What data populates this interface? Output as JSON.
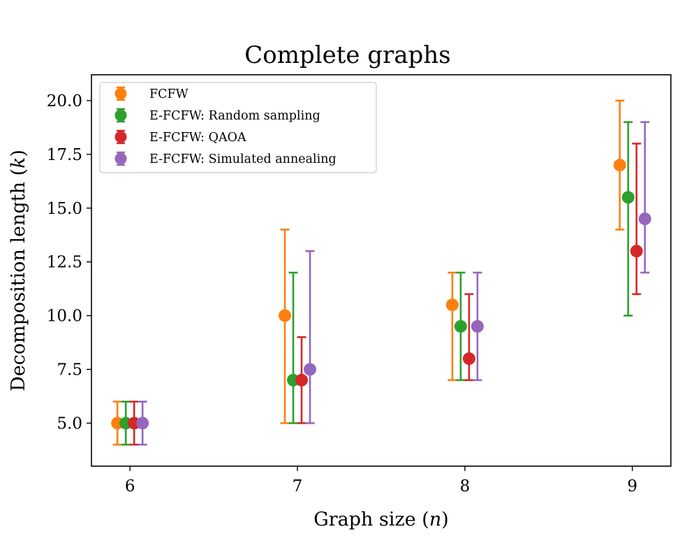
{
  "chart_data": {
    "type": "errorbar",
    "title": "Complete graphs",
    "xlabel": "Graph size (n)",
    "ylabel": "Decomposition length (k)",
    "x": [
      6,
      7,
      8,
      9
    ],
    "xlim": [
      5.77,
      9.23
    ],
    "ylim": [
      3.0,
      21.2
    ],
    "xticks": [
      6,
      7,
      8,
      9
    ],
    "xtick_labels": [
      "6",
      "7",
      "8",
      "9"
    ],
    "yticks": [
      5.0,
      7.5,
      10.0,
      12.5,
      15.0,
      17.5,
      20.0
    ],
    "ytick_labels": [
      "5.0",
      "7.5",
      "10.0",
      "12.5",
      "15.0",
      "17.5",
      "20.0"
    ],
    "grid": false,
    "legend_position": "top-left",
    "series": [
      {
        "name": "FCFW",
        "color": "#ff7f0e",
        "offset": -0.075,
        "values": [
          5.0,
          10.0,
          10.5,
          17.0
        ],
        "err_low": [
          4,
          5,
          7,
          14
        ],
        "err_high": [
          6,
          14,
          12,
          20
        ]
      },
      {
        "name": "E-FCFW: Random sampling",
        "color": "#2ca02c",
        "offset": -0.025,
        "values": [
          5.0,
          7.0,
          9.5,
          15.5
        ],
        "err_low": [
          4,
          5,
          7,
          10
        ],
        "err_high": [
          6,
          12,
          12,
          19
        ]
      },
      {
        "name": "E-FCFW: QAOA",
        "color": "#d62728",
        "offset": 0.025,
        "values": [
          5.0,
          7.0,
          8.0,
          13.0
        ],
        "err_low": [
          4,
          5,
          7,
          11
        ],
        "err_high": [
          6,
          9,
          11,
          18
        ]
      },
      {
        "name": "E-FCFW: Simulated annealing",
        "color": "#9467bd",
        "offset": 0.075,
        "values": [
          5.0,
          7.5,
          9.5,
          14.5
        ],
        "err_low": [
          4,
          5,
          7,
          12
        ],
        "err_high": [
          6,
          13,
          12,
          19
        ]
      }
    ]
  }
}
